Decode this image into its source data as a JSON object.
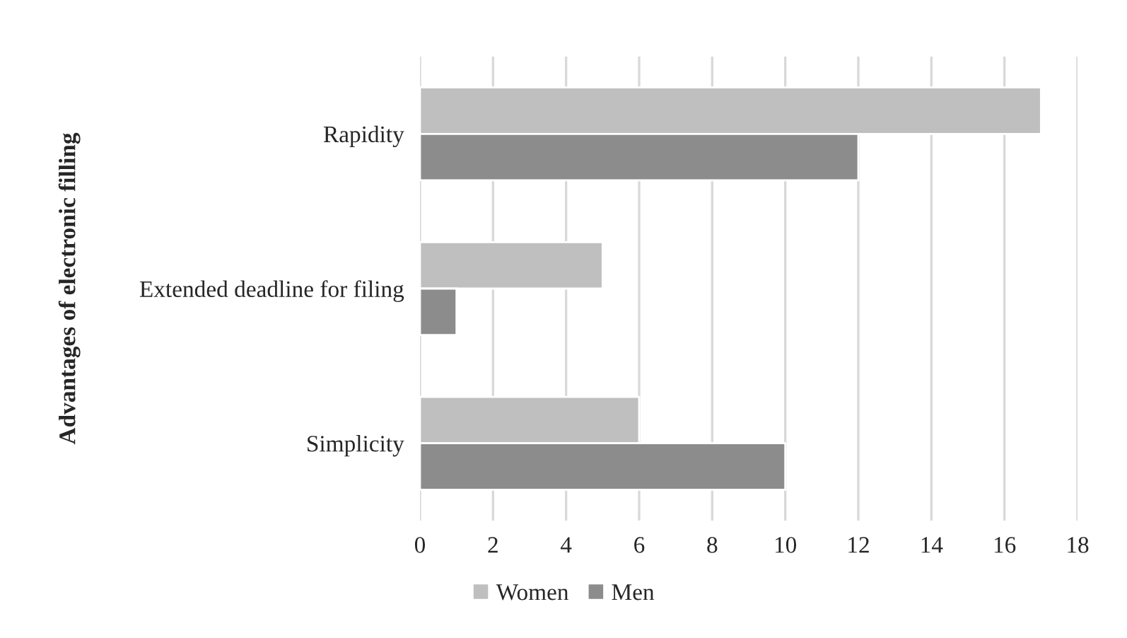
{
  "chart_data": {
    "type": "bar",
    "orientation": "horizontal",
    "ylabel": "Advantages of electronic filling",
    "categories": [
      "Rapidity",
      "Extended deadline for filing",
      "Simplicity"
    ],
    "series": [
      {
        "name": "Women",
        "color": "#bfbfbf",
        "values": [
          17,
          5,
          6
        ]
      },
      {
        "name": "Men",
        "color": "#8c8c8c",
        "values": [
          12,
          1,
          10
        ]
      }
    ],
    "xlim": [
      0,
      18
    ],
    "xticks": [
      0,
      2,
      4,
      6,
      8,
      10,
      12,
      14,
      16,
      18
    ],
    "grid": "x",
    "legend": "bottom"
  }
}
